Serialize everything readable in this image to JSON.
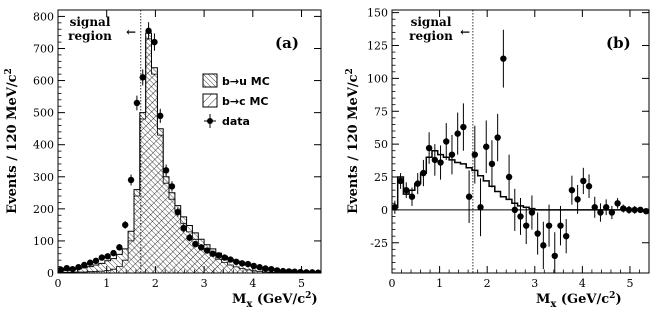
{
  "chart_data": [
    {
      "type": "histogram",
      "panel_label": "(a)",
      "ylabel_main": "Events / 120 MeV/c",
      "ylabel_sup": "2",
      "xlabel_main": "M",
      "xlabel_sub": "x",
      "xlabel_unit": " (GeV/c",
      "xlabel_sup": "2",
      "xlabel_close": ")",
      "signal_region_line1": "signal",
      "signal_region_line2": "region",
      "arrow": "←",
      "signal_cut": 1.7,
      "xlim": [
        0,
        5.4
      ],
      "ylim": [
        0,
        820
      ],
      "xticks": [
        0,
        1,
        2,
        3,
        4,
        5
      ],
      "yticks": [
        0,
        100,
        200,
        300,
        400,
        500,
        600,
        700,
        800
      ],
      "bin_width": 0.12,
      "legend": [
        {
          "label": "b→u MC",
          "pattern": "hatch-dense"
        },
        {
          "label": "b→c MC",
          "pattern": "hatch-sparse"
        },
        {
          "label": "data",
          "pattern": "marker"
        }
      ],
      "total_mc": [
        [
          0.0,
          12
        ],
        [
          0.12,
          8
        ],
        [
          0.24,
          10
        ],
        [
          0.36,
          13
        ],
        [
          0.48,
          16
        ],
        [
          0.6,
          20
        ],
        [
          0.72,
          25
        ],
        [
          0.84,
          30
        ],
        [
          0.96,
          38
        ],
        [
          1.08,
          45
        ],
        [
          1.2,
          58
        ],
        [
          1.32,
          75
        ],
        [
          1.44,
          130
        ],
        [
          1.56,
          260
        ],
        [
          1.68,
          500
        ],
        [
          1.8,
          748
        ],
        [
          1.92,
          640
        ],
        [
          2.04,
          450
        ],
        [
          2.16,
          300
        ],
        [
          2.28,
          250
        ],
        [
          2.4,
          210
        ],
        [
          2.52,
          175
        ],
        [
          2.64,
          148
        ],
        [
          2.76,
          125
        ],
        [
          2.88,
          105
        ],
        [
          3.0,
          88
        ],
        [
          3.12,
          75
        ],
        [
          3.24,
          62
        ],
        [
          3.36,
          52
        ],
        [
          3.48,
          44
        ],
        [
          3.6,
          37
        ],
        [
          3.72,
          30
        ],
        [
          3.84,
          25
        ],
        [
          3.96,
          20
        ],
        [
          4.08,
          16
        ],
        [
          4.2,
          12
        ],
        [
          4.32,
          9
        ],
        [
          4.44,
          7
        ],
        [
          4.56,
          5
        ],
        [
          4.68,
          4
        ],
        [
          4.8,
          3
        ],
        [
          4.92,
          2
        ],
        [
          5.04,
          2
        ],
        [
          5.16,
          1
        ],
        [
          5.28,
          1
        ]
      ],
      "bc_mc": [
        [
          0.0,
          2
        ],
        [
          0.12,
          2
        ],
        [
          0.24,
          2
        ],
        [
          0.36,
          3
        ],
        [
          0.48,
          3
        ],
        [
          0.6,
          4
        ],
        [
          0.72,
          5
        ],
        [
          0.84,
          6
        ],
        [
          0.96,
          8
        ],
        [
          1.08,
          12
        ],
        [
          1.2,
          20
        ],
        [
          1.32,
          40
        ],
        [
          1.44,
          100
        ],
        [
          1.56,
          240
        ],
        [
          1.68,
          480
        ],
        [
          1.8,
          730
        ],
        [
          1.92,
          620
        ],
        [
          2.04,
          430
        ],
        [
          2.16,
          280
        ],
        [
          2.28,
          230
        ],
        [
          2.4,
          190
        ],
        [
          2.52,
          155
        ],
        [
          2.64,
          128
        ],
        [
          2.76,
          105
        ],
        [
          2.88,
          85
        ],
        [
          3.0,
          68
        ],
        [
          3.12,
          55
        ],
        [
          3.24,
          43
        ],
        [
          3.36,
          33
        ],
        [
          3.48,
          25
        ],
        [
          3.6,
          19
        ],
        [
          3.72,
          14
        ],
        [
          3.84,
          10
        ],
        [
          3.96,
          7
        ],
        [
          4.08,
          5
        ],
        [
          4.2,
          3
        ],
        [
          4.32,
          2
        ],
        [
          4.44,
          1
        ],
        [
          4.56,
          1
        ],
        [
          4.68,
          0
        ],
        [
          4.8,
          0
        ],
        [
          4.92,
          0
        ],
        [
          5.04,
          0
        ],
        [
          5.16,
          0
        ],
        [
          5.28,
          0
        ]
      ],
      "data": [
        [
          0.06,
          10,
          4
        ],
        [
          0.18,
          15,
          5
        ],
        [
          0.3,
          12,
          5
        ],
        [
          0.42,
          18,
          5
        ],
        [
          0.54,
          25,
          6
        ],
        [
          0.66,
          32,
          7
        ],
        [
          0.78,
          38,
          7
        ],
        [
          0.9,
          48,
          8
        ],
        [
          1.02,
          52,
          8
        ],
        [
          1.14,
          62,
          9
        ],
        [
          1.26,
          80,
          10
        ],
        [
          1.38,
          150,
          12
        ],
        [
          1.5,
          290,
          17
        ],
        [
          1.62,
          530,
          23
        ],
        [
          1.74,
          610,
          25
        ],
        [
          1.86,
          755,
          27
        ],
        [
          1.98,
          720,
          27
        ],
        [
          2.1,
          490,
          22
        ],
        [
          2.22,
          320,
          18
        ],
        [
          2.34,
          270,
          16
        ],
        [
          2.46,
          190,
          14
        ],
        [
          2.58,
          140,
          12
        ],
        [
          2.7,
          110,
          11
        ],
        [
          2.82,
          90,
          10
        ],
        [
          2.94,
          80,
          9
        ],
        [
          3.06,
          70,
          9
        ],
        [
          3.18,
          60,
          8
        ],
        [
          3.3,
          55,
          8
        ],
        [
          3.42,
          48,
          7
        ],
        [
          3.54,
          42,
          7
        ],
        [
          3.66,
          35,
          6
        ],
        [
          3.78,
          30,
          6
        ],
        [
          3.9,
          28,
          6
        ],
        [
          4.02,
          22,
          5
        ],
        [
          4.14,
          18,
          5
        ],
        [
          4.26,
          14,
          4
        ],
        [
          4.38,
          12,
          4
        ],
        [
          4.5,
          8,
          3
        ],
        [
          4.62,
          6,
          3
        ],
        [
          4.74,
          5,
          3
        ],
        [
          4.86,
          4,
          2
        ],
        [
          4.98,
          3,
          2
        ],
        [
          5.1,
          2,
          2
        ],
        [
          5.22,
          2,
          2
        ],
        [
          5.34,
          1,
          1
        ]
      ]
    },
    {
      "type": "histogram",
      "panel_label": "(b)",
      "ylabel_main": "Events / 120 MeV/c",
      "ylabel_sup": "2",
      "xlabel_main": "M",
      "xlabel_sub": "x",
      "xlabel_unit": " (GeV/c",
      "xlabel_sup": "2",
      "xlabel_close": ")",
      "signal_region_line1": "signal",
      "signal_region_line2": "region",
      "arrow": "←",
      "signal_cut": 1.7,
      "xlim": [
        0,
        5.4
      ],
      "ylim": [
        -48,
        152
      ],
      "xticks": [
        0,
        1,
        2,
        3,
        4,
        5
      ],
      "yticks": [
        -25,
        0,
        25,
        50,
        75,
        100,
        125,
        150
      ],
      "bin_width": 0.12,
      "bu_mc": [
        [
          0.0,
          2
        ],
        [
          0.12,
          25
        ],
        [
          0.24,
          12
        ],
        [
          0.36,
          15
        ],
        [
          0.48,
          20
        ],
        [
          0.6,
          28
        ],
        [
          0.72,
          40
        ],
        [
          0.84,
          45
        ],
        [
          0.96,
          42
        ],
        [
          1.08,
          40
        ],
        [
          1.2,
          38
        ],
        [
          1.32,
          36
        ],
        [
          1.44,
          35
        ],
        [
          1.56,
          32
        ],
        [
          1.68,
          30
        ],
        [
          1.8,
          26
        ],
        [
          1.92,
          22
        ],
        [
          2.04,
          18
        ],
        [
          2.16,
          14
        ],
        [
          2.28,
          10
        ],
        [
          2.4,
          8
        ],
        [
          2.52,
          5
        ],
        [
          2.64,
          3
        ],
        [
          2.76,
          2
        ],
        [
          2.88,
          1
        ],
        [
          3.0,
          0
        ],
        [
          3.12,
          0
        ],
        [
          3.24,
          0
        ],
        [
          3.36,
          0
        ],
        [
          3.48,
          0
        ],
        [
          3.6,
          0
        ],
        [
          3.72,
          0
        ],
        [
          3.84,
          0
        ],
        [
          3.96,
          0
        ],
        [
          4.08,
          0
        ],
        [
          4.2,
          0
        ],
        [
          4.32,
          0
        ],
        [
          4.44,
          0
        ],
        [
          4.56,
          0
        ],
        [
          4.68,
          0
        ],
        [
          4.8,
          0
        ],
        [
          4.92,
          0
        ],
        [
          5.04,
          0
        ],
        [
          5.16,
          0
        ],
        [
          5.28,
          0
        ]
      ],
      "data": [
        [
          0.06,
          2,
          5
        ],
        [
          0.18,
          22,
          6
        ],
        [
          0.3,
          15,
          6
        ],
        [
          0.42,
          10,
          7
        ],
        [
          0.54,
          20,
          8
        ],
        [
          0.66,
          28,
          10
        ],
        [
          0.78,
          47,
          12
        ],
        [
          0.9,
          38,
          12
        ],
        [
          1.02,
          36,
          13
        ],
        [
          1.14,
          52,
          14
        ],
        [
          1.26,
          42,
          15
        ],
        [
          1.38,
          58,
          16
        ],
        [
          1.5,
          63,
          18
        ],
        [
          1.62,
          10,
          20
        ],
        [
          1.74,
          42,
          22
        ],
        [
          1.86,
          2,
          22
        ],
        [
          1.98,
          48,
          20
        ],
        [
          2.1,
          35,
          18
        ],
        [
          2.22,
          55,
          18
        ],
        [
          2.34,
          115,
          22
        ],
        [
          2.46,
          25,
          17
        ],
        [
          2.58,
          0,
          16
        ],
        [
          2.7,
          -5,
          14
        ],
        [
          2.82,
          -12,
          14
        ],
        [
          2.94,
          -2,
          13
        ],
        [
          3.06,
          -18,
          16
        ],
        [
          3.18,
          -27,
          18
        ],
        [
          3.3,
          -12,
          16
        ],
        [
          3.42,
          -35,
          18
        ],
        [
          3.54,
          -12,
          15
        ],
        [
          3.66,
          -20,
          13
        ],
        [
          3.78,
          15,
          11
        ],
        [
          3.9,
          8,
          11
        ],
        [
          4.02,
          22,
          10
        ],
        [
          4.14,
          18,
          9
        ],
        [
          4.26,
          2,
          8
        ],
        [
          4.38,
          -2,
          7
        ],
        [
          4.5,
          2,
          6
        ],
        [
          4.62,
          -2,
          5
        ],
        [
          4.74,
          5,
          4
        ],
        [
          4.86,
          1,
          3
        ],
        [
          4.98,
          0,
          3
        ],
        [
          5.1,
          0,
          3
        ],
        [
          5.22,
          0,
          2
        ],
        [
          5.34,
          -1,
          2
        ]
      ]
    }
  ]
}
